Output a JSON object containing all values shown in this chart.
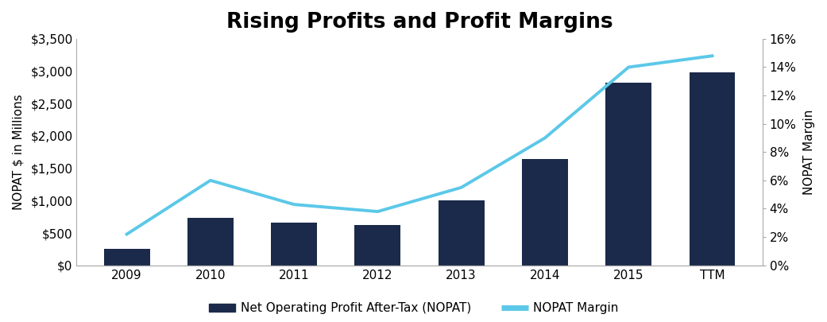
{
  "title": "Rising Profits and Profit Margins",
  "title_fontsize": 19,
  "title_fontweight": "bold",
  "categories": [
    "2009",
    "2010",
    "2011",
    "2012",
    "2013",
    "2014",
    "2015",
    "TTM"
  ],
  "nopat_values": [
    250,
    730,
    660,
    620,
    1000,
    1640,
    2820,
    2980
  ],
  "margin_values": [
    0.022,
    0.06,
    0.043,
    0.038,
    0.055,
    0.09,
    0.14,
    0.148
  ],
  "bar_color": "#1B2A4A",
  "line_color": "#5BC8E8",
  "ylabel_left": "NOPAT $ in Millions",
  "ylabel_right": "NOPAT Margin",
  "ylim_left": [
    0,
    3500
  ],
  "ylim_right": [
    0,
    0.16
  ],
  "yticks_left": [
    0,
    500,
    1000,
    1500,
    2000,
    2500,
    3000,
    3500
  ],
  "yticks_right": [
    0,
    0.02,
    0.04,
    0.06,
    0.08,
    0.1,
    0.12,
    0.14,
    0.16
  ],
  "legend_bar_label": "Net Operating Profit After-Tax (NOPAT)",
  "legend_line_label": "NOPAT Margin",
  "background_color": "#ffffff",
  "line_width": 2.8,
  "bar_width": 0.55,
  "spine_color": "#aaaaaa",
  "tick_fontsize": 11,
  "ylabel_fontsize": 11
}
